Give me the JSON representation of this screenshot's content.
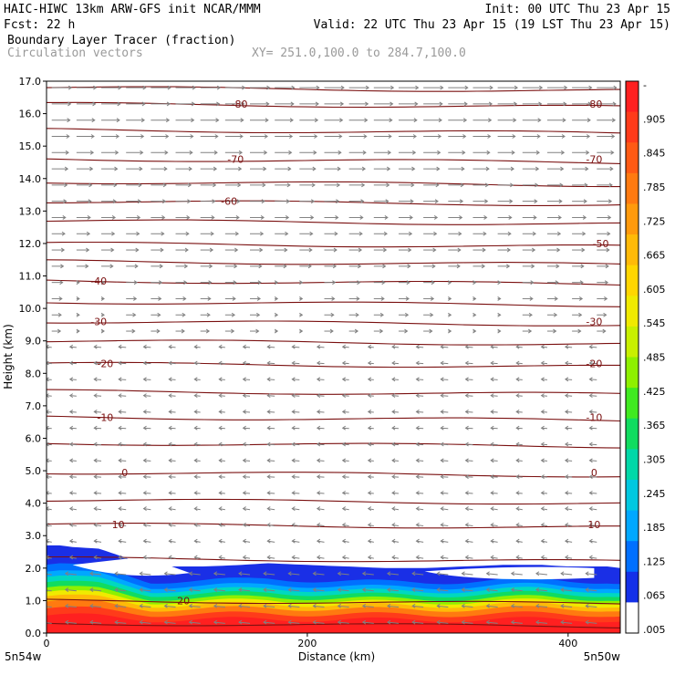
{
  "header": {
    "line1_left": "HAIC-HIWC 13km ARW-GFS init   NCAR/MMM",
    "line1_right": "Init: 00 UTC Thu 23 Apr 15",
    "line2_left": "Fcst:   22 h",
    "line2_right": "Valid: 22 UTC Thu 23 Apr 15 (19 LST Thu 23 Apr 15)",
    "line3_left": "Boundary Layer Tracer      (fraction)",
    "line4_left": "Circulation vectors",
    "line4_right": "XY= 251.0,100.0 to 284.7,100.0"
  },
  "chart_data": {
    "type": "cross-section",
    "xlabel": "Distance (km)",
    "ylabel": "Height (km)",
    "xlim": [
      0,
      440
    ],
    "ylim": [
      0.0,
      17.0
    ],
    "x_ticks": [
      "0",
      "200",
      "400"
    ],
    "x_tick_values": [
      0,
      200,
      400
    ],
    "y_ticks": [
      "0.0",
      "1.0",
      "2.0",
      "3.0",
      "4.0",
      "5.0",
      "6.0",
      "7.0",
      "8.0",
      "9.0",
      "10.0",
      "11.0",
      "12.0",
      "13.0",
      "14.0",
      "15.0",
      "16.0",
      "17.0"
    ],
    "corner_labels": {
      "left": "5n54w",
      "right": "5n50w"
    },
    "colorbar": {
      "labels": [
        "-",
        ".905",
        ".845",
        ".785",
        ".725",
        ".665",
        ".605",
        ".545",
        ".485",
        ".425",
        ".365",
        ".305",
        ".245",
        ".185",
        ".125",
        ".065",
        ".005"
      ],
      "colors": [
        "#ff2020",
        "#ff3b1a",
        "#ff5a14",
        "#ff7a10",
        "#ff9a0c",
        "#ffba08",
        "#ffd600",
        "#f0ea00",
        "#c8f000",
        "#8ef000",
        "#40ea20",
        "#10dc60",
        "#00d8a8",
        "#00c8e0",
        "#00a8ff",
        "#0070ff",
        "#1430e8",
        "#ffffff"
      ]
    },
    "tracer_fill": {
      "top_km": [
        2.7,
        2.7,
        2.65,
        2.6,
        2.4,
        2.05,
        2.05,
        2.1,
        2.15,
        2.1,
        2.05,
        2.0,
        2.0,
        2.05,
        2.1,
        2.1,
        2.05,
        2.05,
        2.05,
        2.0
      ],
      "x_km": [
        0,
        10,
        20,
        40,
        55,
        80,
        120,
        150,
        170,
        200,
        230,
        260,
        290,
        320,
        350,
        380,
        400,
        420,
        430,
        440
      ]
    },
    "temperature_contours": [
      {
        "label": "-80",
        "height_km": 16.3,
        "label_x_km": [
          148,
          420
        ]
      },
      {
        "label": "-70",
        "height_km": 14.6,
        "label_x_km": [
          145,
          420
        ]
      },
      {
        "label": "-60",
        "height_km": 13.3,
        "label_x_km": [
          140
        ]
      },
      {
        "label": "-50",
        "height_km": 12.0,
        "label_x_km": [
          425
        ]
      },
      {
        "label": "-40",
        "height_km": 10.85,
        "label_x_km": [
          40
        ]
      },
      {
        "label": "-30",
        "height_km": 9.6,
        "label_x_km": [
          40,
          420
        ]
      },
      {
        "label": "-20",
        "height_km": 8.3,
        "label_x_km": [
          45,
          420
        ]
      },
      {
        "label": "-10",
        "height_km": 6.65,
        "label_x_km": [
          45,
          420
        ]
      },
      {
        "label": "0",
        "height_km": 4.95,
        "label_x_km": [
          60,
          420
        ]
      },
      {
        "label": "10",
        "height_km": 3.35,
        "label_x_km": [
          55,
          420
        ]
      },
      {
        "label": "20",
        "height_km": 1.0,
        "label_x_km": [
          105
        ]
      }
    ],
    "contour_levels_km": [
      16.8,
      16.3,
      15.5,
      14.6,
      13.9,
      13.3,
      12.7,
      12.0,
      11.45,
      10.85,
      10.2,
      9.6,
      9.0,
      8.3,
      7.45,
      6.65,
      5.85,
      4.95,
      4.1,
      3.35,
      2.3,
      1.0,
      0.3
    ],
    "vector_field": {
      "upper_level_top_km": 9.0,
      "upper_direction": "east",
      "lower_direction": "west"
    }
  }
}
